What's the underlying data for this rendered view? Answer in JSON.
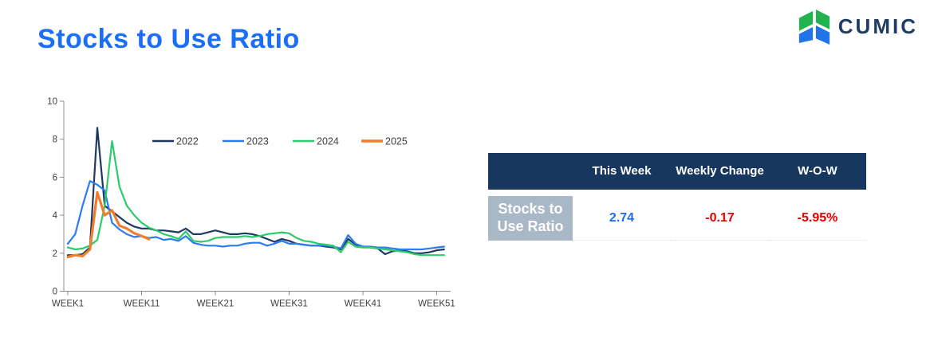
{
  "header": {
    "title": "Stocks to Use Ratio",
    "title_color": "#1b6ef7"
  },
  "logo": {
    "text": "CUMIC",
    "text_color": "#1e3c64",
    "green": "#21b44e",
    "blue": "#2272e8"
  },
  "chart_data": {
    "type": "line",
    "title": "",
    "xlabel": "",
    "ylabel": "",
    "ylim": [
      0,
      10
    ],
    "y_ticks": [
      0,
      2,
      4,
      6,
      8,
      10
    ],
    "x_tick_labels": [
      "WEEK1",
      "WEEK11",
      "WEEK21",
      "WEEK31",
      "WEEK41",
      "WEEK51"
    ],
    "x_tick_weeks": [
      1,
      11,
      21,
      31,
      41,
      51
    ],
    "grid": false,
    "legend_position": "top-center-inside",
    "series": [
      {
        "name": "2022",
        "color": "#203864",
        "values": [
          1.9,
          1.9,
          1.95,
          2.3,
          8.6,
          4.5,
          4.2,
          3.9,
          3.6,
          3.4,
          3.3,
          3.3,
          3.2,
          3.2,
          3.15,
          3.1,
          3.3,
          3.0,
          3.0,
          3.1,
          3.2,
          3.1,
          3.0,
          3.0,
          3.05,
          3.0,
          2.9,
          2.75,
          2.6,
          2.75,
          2.65,
          2.5,
          2.45,
          2.4,
          2.4,
          2.35,
          2.3,
          2.2,
          2.75,
          2.45,
          2.35,
          2.3,
          2.25,
          1.95,
          2.1,
          2.15,
          2.1,
          2.0,
          2.0,
          2.05,
          2.15,
          2.2
        ]
      },
      {
        "name": "2023",
        "color": "#2b7cf2",
        "values": [
          2.5,
          3.0,
          4.5,
          5.8,
          5.6,
          5.3,
          3.6,
          3.25,
          3.0,
          2.85,
          2.9,
          2.8,
          2.85,
          2.7,
          2.75,
          2.65,
          2.9,
          2.55,
          2.45,
          2.4,
          2.4,
          2.35,
          2.4,
          2.4,
          2.5,
          2.55,
          2.55,
          2.4,
          2.5,
          2.65,
          2.5,
          2.5,
          2.45,
          2.4,
          2.4,
          2.4,
          2.35,
          2.25,
          2.95,
          2.5,
          2.35,
          2.35,
          2.3,
          2.3,
          2.25,
          2.2,
          2.2,
          2.2,
          2.2,
          2.25,
          2.3,
          2.35
        ]
      },
      {
        "name": "2024",
        "color": "#2bcc6b",
        "values": [
          2.3,
          2.2,
          2.25,
          2.4,
          2.7,
          4.5,
          7.9,
          5.5,
          4.5,
          4.0,
          3.6,
          3.35,
          3.2,
          3.0,
          2.9,
          2.75,
          3.15,
          2.65,
          2.6,
          2.65,
          2.8,
          2.85,
          2.85,
          2.85,
          2.9,
          2.85,
          2.9,
          3.0,
          3.05,
          3.1,
          3.05,
          2.8,
          2.65,
          2.6,
          2.5,
          2.45,
          2.4,
          2.05,
          2.6,
          2.35,
          2.3,
          2.3,
          2.25,
          2.2,
          2.15,
          2.1,
          2.05,
          1.95,
          1.9,
          1.9,
          1.9,
          1.9
        ]
      },
      {
        "name": "2025",
        "color": "#f07f2d",
        "values": [
          1.8,
          1.9,
          1.85,
          2.2,
          5.2,
          4.0,
          4.25,
          3.45,
          3.3,
          3.05,
          2.91,
          2.74
        ]
      }
    ]
  },
  "table": {
    "header_bg": "#17375e",
    "header_text_color": "#ffffff",
    "row_label_bg": "#a9b8c6",
    "columns": [
      "",
      "This Week",
      "Weekly Change",
      "W-O-W"
    ],
    "rows": [
      {
        "label": "Stocks to Use Ratio",
        "values": [
          {
            "text": "2.74",
            "color": "#1f6bf0"
          },
          {
            "text": "-0.17",
            "color": "#e60000"
          },
          {
            "text": "-5.95%",
            "color": "#e60000"
          }
        ]
      }
    ]
  }
}
